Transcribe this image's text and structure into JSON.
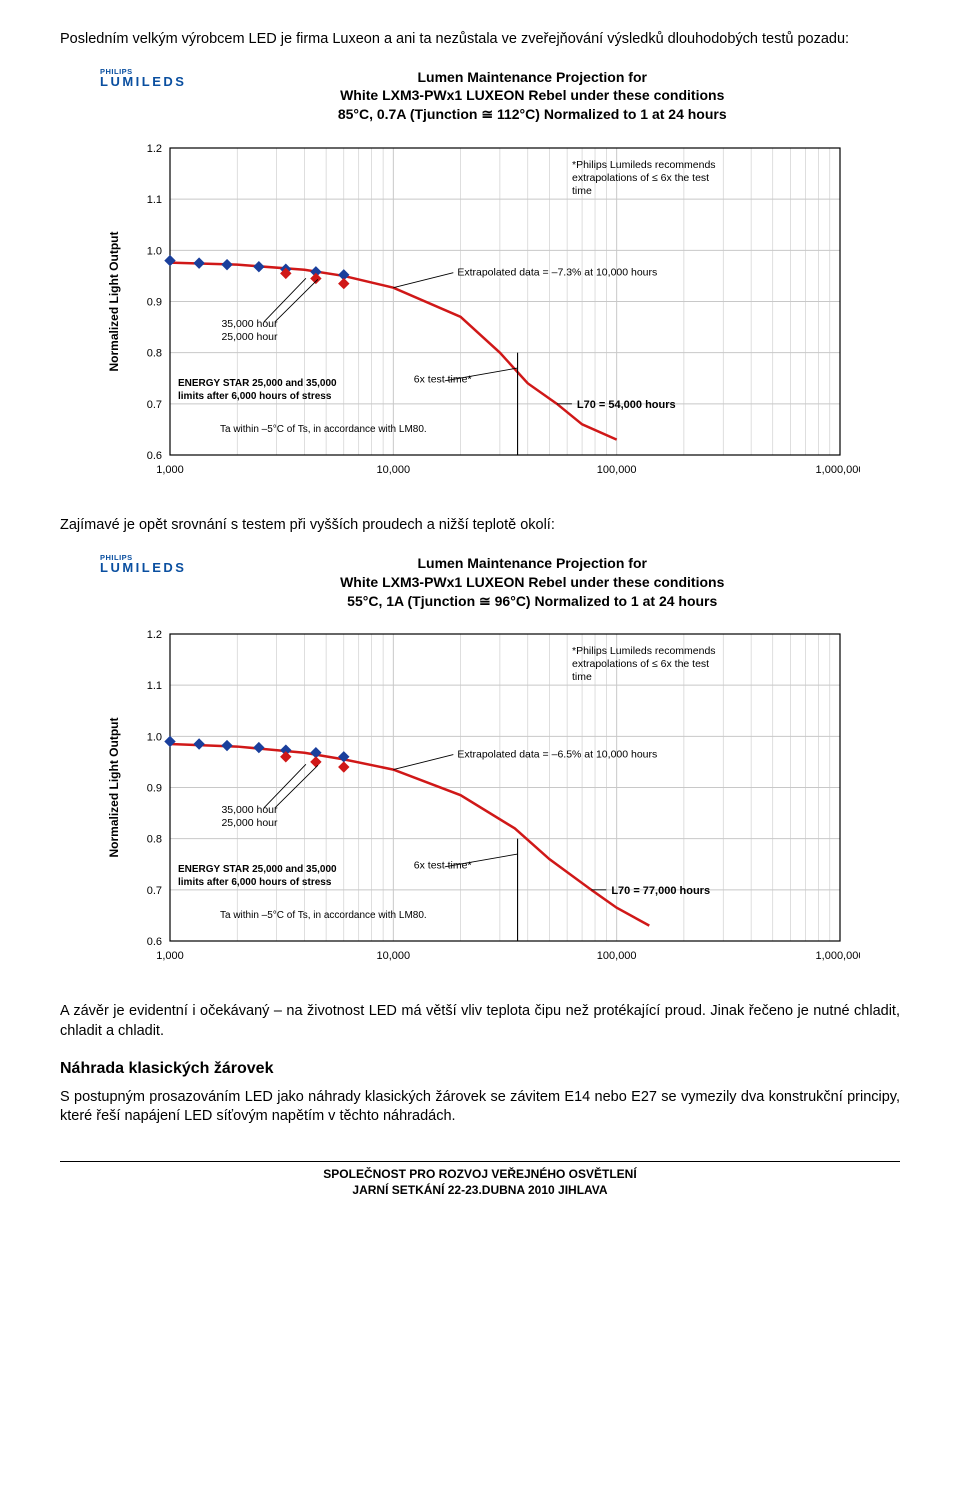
{
  "intro_para": "Posledním velkým výrobcem LED je firma Luxeon a ani ta nezůstala ve zveřejňování výsledků dlouhodobých testů pozadu:",
  "mid_para": "Zajímavé je opět srovnání s testem při vyšších proudech a nižší teplotě okolí:",
  "conclusion_para": "A závěr je evidentní i očekávaný – na životnost LED má větší vliv teplota čipu než protékající proud. Jinak řečeno je nutné chladit, chladit a chladit.",
  "heading2": "Náhrada klasických žárovek",
  "para2": "S postupným prosazováním LED jako náhrady klasických žárovek se závitem E14 nebo E27 se vymezily dva konstrukční principy, které řeší napájení LED síťovým napětím v těchto náhradách.",
  "footer_line1": "SPOLEČNOST PRO ROZVOJ VEŘEJNÉHO OSVĚTLENÍ",
  "footer_line2": "JARNÍ SETKÁNÍ 22-23.DUBNA 2010 JIHLAVA",
  "brand_top": "PHILIPS",
  "brand_bot": "LUMILEDS",
  "chart1": {
    "title_l1": "Lumen Maintenance Projection for",
    "title_l2": "White LXM3-PWx1 LUXEON Rebel under these conditions",
    "title_l3": "85°C, 0.7A (Tjunction ≅ 112°C) Normalized to 1 at 24 hours",
    "note_l1": "*Philips Lumileds recommends",
    "note_l2": "extrapolations of ≤ 6x the test",
    "note_l3": "time",
    "ylabel": "Normalized Light Output",
    "yticks": [
      "0.6",
      "0.7",
      "0.8",
      "0.9",
      "1.0",
      "1.1",
      "1.2"
    ],
    "xticks": [
      "1,000",
      "10,000",
      "100,000",
      "1,000,000"
    ],
    "blue_points": [
      [
        1000,
        0.98
      ],
      [
        1350,
        0.975
      ],
      [
        1800,
        0.972
      ],
      [
        2500,
        0.968
      ],
      [
        3300,
        0.963
      ],
      [
        4500,
        0.958
      ],
      [
        6000,
        0.952
      ]
    ],
    "red_points": [
      [
        3300,
        0.955
      ],
      [
        4500,
        0.945
      ],
      [
        6000,
        0.935
      ]
    ],
    "red_line": [
      [
        1000,
        0.976
      ],
      [
        2000,
        0.972
      ],
      [
        4000,
        0.962
      ],
      [
        6000,
        0.95
      ],
      [
        10000,
        0.927
      ],
      [
        20000,
        0.87
      ],
      [
        30000,
        0.8
      ],
      [
        40000,
        0.74
      ],
      [
        54000,
        0.7
      ],
      [
        70000,
        0.66
      ],
      [
        100000,
        0.63
      ]
    ],
    "extrap_label": "Extrapolated data = –7.3% at 10,000 hours",
    "hour_label1": "35,000 hour",
    "hour_label2": "25,000 hour",
    "energy_l1": "ENERGY STAR  25,000 and 35,000",
    "energy_l2": "limits after 6,000 hours of stress",
    "sixx_label": "6x test time*",
    "l70_label": "L70 = 54,000 hours",
    "ta_label": "Ta within –5°C of Ts, in accordance with LM80.",
    "colors": {
      "blue": "#1a3f9c",
      "red": "#d01818",
      "grid": "#c8c8c8",
      "axis": "#000",
      "fill": "#ffffff"
    }
  },
  "chart2": {
    "title_l1": "Lumen Maintenance Projection for",
    "title_l2": "White LXM3-PWx1 LUXEON Rebel under these conditions",
    "title_l3": "55°C, 1A (Tjunction ≅ 96°C) Normalized to 1 at 24 hours",
    "note_l1": "*Philips Lumileds recommends",
    "note_l2": "extrapolations of ≤ 6x the test",
    "note_l3": "time",
    "ylabel": "Normalized Light Output",
    "yticks": [
      "0.6",
      "0.7",
      "0.8",
      "0.9",
      "1.0",
      "1.1",
      "1.2"
    ],
    "xticks": [
      "1,000",
      "10,000",
      "100,000",
      "1,000,000"
    ],
    "blue_points": [
      [
        1000,
        0.99
      ],
      [
        1350,
        0.985
      ],
      [
        1800,
        0.982
      ],
      [
        2500,
        0.978
      ],
      [
        3300,
        0.973
      ],
      [
        4500,
        0.968
      ],
      [
        6000,
        0.96
      ]
    ],
    "red_points": [
      [
        3300,
        0.96
      ],
      [
        4500,
        0.95
      ],
      [
        6000,
        0.94
      ]
    ],
    "red_line": [
      [
        1000,
        0.985
      ],
      [
        2000,
        0.98
      ],
      [
        4000,
        0.968
      ],
      [
        6000,
        0.955
      ],
      [
        10000,
        0.935
      ],
      [
        20000,
        0.885
      ],
      [
        35000,
        0.82
      ],
      [
        50000,
        0.76
      ],
      [
        77000,
        0.7
      ],
      [
        100000,
        0.665
      ],
      [
        140000,
        0.63
      ]
    ],
    "extrap_label": "Extrapolated data = –6.5% at 10,000 hours",
    "hour_label1": "35,000 hour",
    "hour_label2": "25,000 hour",
    "energy_l1": "ENERGY STAR  25,000 and 35,000",
    "energy_l2": "limits after 6,000 hours of stress",
    "sixx_label": "6x test time*",
    "l70_label": "L70 = 77,000 hours",
    "ta_label": "Ta within –5°C of Ts, in accordance with LM80.",
    "colors": {
      "blue": "#1a3f9c",
      "red": "#d01818",
      "grid": "#c8c8c8",
      "axis": "#000",
      "fill": "#ffffff"
    }
  }
}
